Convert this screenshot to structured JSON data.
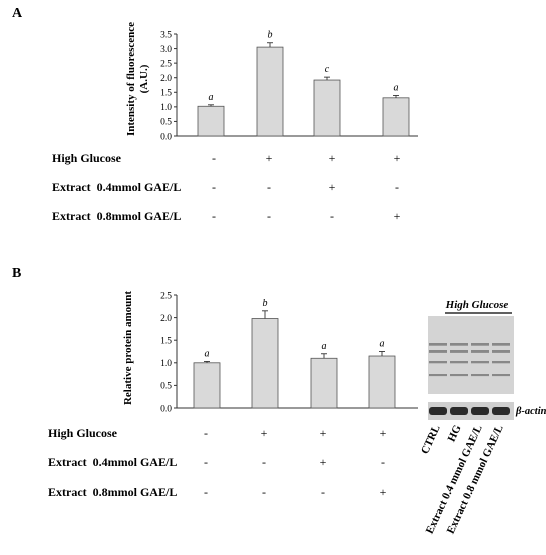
{
  "figure": {
    "panels": [
      {
        "letter": "A",
        "ylabel_lines": [
          "Intensity of fluorescence",
          "(A.U.)"
        ],
        "treatment_rows": [
          {
            "label": "High Glucose",
            "cells": [
              "-",
              "+",
              "+",
              "+"
            ]
          },
          {
            "label": "Extract  0.4mmol GAE/L",
            "cells": [
              "-",
              "-",
              "+",
              "-"
            ]
          },
          {
            "label": "Extract  0.8mmol GAE/L",
            "cells": [
              "-",
              "-",
              "-",
              "+"
            ]
          }
        ]
      },
      {
        "letter": "B",
        "ylabel_lines": [
          "Relative protein amount"
        ],
        "treatment_rows": [
          {
            "label": "High Glucose",
            "cells": [
              "-",
              "+",
              "+",
              "+"
            ]
          },
          {
            "label": "Extract  0.4mmol GAE/L",
            "cells": [
              "-",
              "-",
              "+",
              "-"
            ]
          },
          {
            "label": "Extract  0.8mmol GAE/L",
            "cells": [
              "-",
              "-",
              "-",
              "+"
            ]
          }
        ]
      }
    ],
    "blot": {
      "header": "High Glucose",
      "caption": "β-actin",
      "lanes": [
        "CTRL",
        "HG",
        "Extract 0.4 mmol GAE/L",
        "Extract 0.8 mmol GAE/L"
      ]
    }
  },
  "colors": {
    "bar_fill": "#d9d9d9",
    "bar_stroke": "#555555",
    "axis": "#333333",
    "blot_bg": "#d6d6d6",
    "band": "#555555"
  },
  "chart_data": [
    {
      "type": "bar",
      "categories": [
        "1",
        "2",
        "3",
        "4"
      ],
      "values": [
        1.02,
        3.05,
        1.92,
        1.31
      ],
      "errors": [
        0.05,
        0.15,
        0.1,
        0.08
      ],
      "significance": [
        "a",
        "b",
        "c",
        "a"
      ],
      "ylabel": "Intensity of fluorescence (A.U.)",
      "ylim": [
        0,
        3.5
      ],
      "yticks": [
        "0.0",
        "0.5",
        "1.0",
        "1.5",
        "2.0",
        "2.5",
        "3.0",
        "3.5"
      ],
      "grid": false
    },
    {
      "type": "bar",
      "categories": [
        "1",
        "2",
        "3",
        "4"
      ],
      "values": [
        1.0,
        1.98,
        1.1,
        1.15
      ],
      "errors": [
        0.03,
        0.17,
        0.1,
        0.1
      ],
      "significance": [
        "a",
        "b",
        "a",
        "a"
      ],
      "ylabel": "Relative protein amount",
      "ylim": [
        0,
        2.5
      ],
      "yticks": [
        "0.0",
        "0.5",
        "1.0",
        "1.5",
        "2.0",
        "2.5"
      ],
      "grid": false
    }
  ]
}
